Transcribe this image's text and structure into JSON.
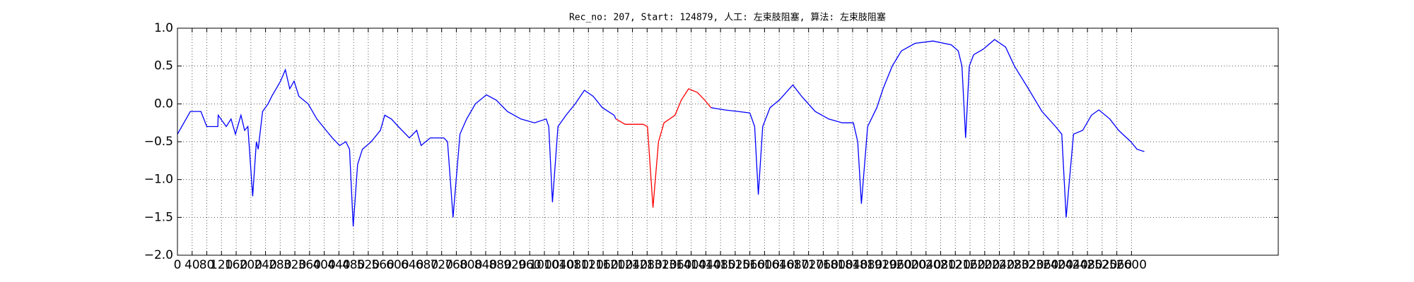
{
  "chart_data": {
    "type": "line",
    "title": "Rec_no: 207, Start: 124879, 人工: 左束肢阻塞, 算法: 左束肢阻塞",
    "xlim": [
      0,
      3000
    ],
    "xticks": [
      0,
      40,
      80,
      120,
      160,
      200,
      240,
      280,
      320,
      360,
      400,
      440,
      480,
      520,
      560,
      600,
      640,
      680,
      720,
      760,
      800,
      840,
      880,
      920,
      960,
      1000,
      1040,
      1080,
      1120,
      1160,
      1200,
      1240,
      1280,
      1320,
      1360,
      1400,
      1440,
      1480,
      1520,
      1560,
      1600,
      1640,
      1680,
      1720,
      1760,
      1800,
      1840,
      1880,
      1920,
      1960,
      2000,
      2040,
      2080,
      2120,
      2160,
      2200,
      2240,
      2280,
      2320,
      2360,
      2400,
      2440,
      2480,
      2520,
      2560,
      2600
    ],
    "ylim": [
      -2,
      1
    ],
    "yticks": [
      {
        "value": -2,
        "label": "−2.0"
      },
      {
        "value": -1.5,
        "label": "−1.5"
      },
      {
        "value": -1,
        "label": "−1.0"
      },
      {
        "value": -0.5,
        "label": "−0.5"
      },
      {
        "value": 0,
        "label": "0.0"
      },
      0.5,
      {
        "value": 1,
        "label": "1.0"
      }
    ],
    "grid": true,
    "series": [
      {
        "color": "#0000ff",
        "x": [
          0,
          35,
          64,
          80,
          110,
          111,
          133,
          146,
          158,
          173,
          183,
          192,
          205,
          215,
          220,
          232,
          247,
          257,
          269,
          281,
          294,
          306,
          318,
          331,
          356,
          380,
          405,
          422,
          442,
          459,
          469,
          479,
          491,
          504,
          528,
          553,
          565,
          583,
          602,
          632,
          652,
          664,
          689,
          726,
          736,
          751,
          770,
          788,
          812,
          842,
          869,
          899,
          936,
          973,
          1005,
          1012,
          1022,
          1037,
          1059,
          1084,
          1109,
          1133,
          1158,
          1190,
          1195,
          1320,
          1454,
          1491,
          1528,
          1560,
          1573,
          1583,
          1595,
          1615,
          1640,
          1677,
          1701,
          1738,
          1775,
          1812,
          1842,
          1854,
          1864,
          1881,
          1906,
          1923,
          1948,
          1973,
          2010,
          2059,
          2109,
          2128,
          2138,
          2148,
          2158,
          2170,
          2195,
          2227,
          2257,
          2281,
          2319,
          2356,
          2393,
          2410,
          2422,
          2442,
          2467,
          2491,
          2511,
          2541,
          2565,
          2598,
          2615,
          2635
        ],
        "values": [
          -0.4,
          -0.1,
          -0.1,
          -0.3,
          -0.3,
          -0.15,
          -0.3,
          -0.2,
          -0.4,
          -0.15,
          -0.35,
          -0.3,
          -1.22,
          -0.5,
          -0.6,
          -0.1,
          0.0,
          0.1,
          0.2,
          0.3,
          0.45,
          0.2,
          0.3,
          0.1,
          0.0,
          -0.2,
          -0.35,
          -0.45,
          -0.55,
          -0.5,
          -0.6,
          -1.62,
          -0.8,
          -0.6,
          -0.5,
          -0.35,
          -0.15,
          -0.2,
          -0.3,
          -0.45,
          -0.35,
          -0.55,
          -0.45,
          -0.45,
          -0.5,
          -1.5,
          -0.4,
          -0.2,
          0.0,
          0.12,
          0.05,
          -0.1,
          -0.2,
          -0.25,
          -0.2,
          -0.3,
          -1.3,
          -0.3,
          -0.15,
          0.0,
          0.18,
          0.1,
          -0.05,
          -0.15,
          -0.2,
          null,
          -0.05,
          -0.08,
          -0.1,
          -0.12,
          -0.3,
          -1.2,
          -0.3,
          -0.05,
          0.05,
          0.25,
          0.1,
          -0.1,
          -0.2,
          -0.25,
          -0.25,
          -0.5,
          -1.32,
          -0.3,
          -0.05,
          0.2,
          0.5,
          0.7,
          0.8,
          0.83,
          0.78,
          0.7,
          0.5,
          -0.45,
          0.5,
          0.65,
          0.72,
          0.85,
          0.75,
          0.5,
          0.2,
          -0.1,
          -0.3,
          -0.4,
          -1.5,
          -0.4,
          -0.35,
          -0.15,
          -0.08,
          -0.2,
          -0.35,
          -0.5,
          -0.6,
          -0.63
        ]
      },
      {
        "color": "#ff0000",
        "x": [
          1195,
          1220,
          1269,
          1281,
          1296,
          1311,
          1326,
          1356,
          1373,
          1393,
          1417,
          1437,
          1454
        ],
        "values": [
          -0.2,
          -0.27,
          -0.27,
          -0.3,
          -1.37,
          -0.5,
          -0.25,
          -0.15,
          0.05,
          0.2,
          0.15,
          0.05,
          -0.05
        ]
      }
    ]
  }
}
